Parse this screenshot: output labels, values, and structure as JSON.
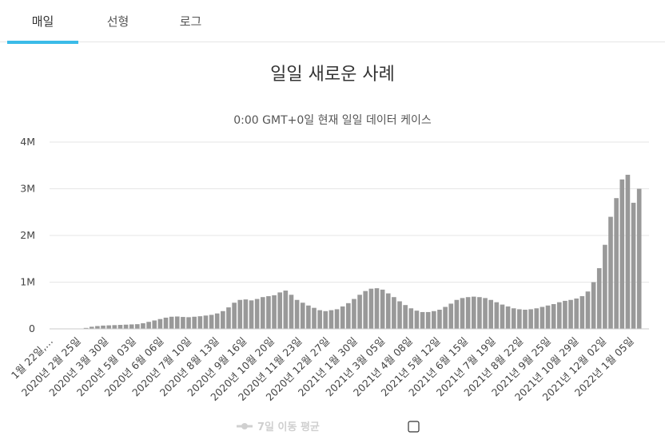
{
  "tabs": [
    {
      "label": "매일"
    },
    {
      "label": "선형"
    },
    {
      "label": "로그"
    }
  ],
  "legend": {
    "label": "7일 이동 평균"
  },
  "colors": {
    "bar": "#999999",
    "accent": "#3bbbe8",
    "grid": "#e6e6e6"
  },
  "chart_data": {
    "type": "bar",
    "title": "일일 새로운 사례",
    "subtitle": "0:00 GMT+0일 현재 일일 데이터 케이스",
    "xlabel": "",
    "ylabel": "",
    "ylim": [
      0,
      4000000
    ],
    "yticks": [
      {
        "value": 0,
        "label": "0"
      },
      {
        "value": 1000000,
        "label": "1M"
      },
      {
        "value": 2000000,
        "label": "2M"
      },
      {
        "value": 3000000,
        "label": "3M"
      },
      {
        "value": 4000000,
        "label": "4M"
      }
    ],
    "xtick_labels": [
      "1월 22일,…",
      "2020년 2월 25일",
      "2020년 3월 30일",
      "2020년 5월 03일",
      "2020년 6월 06일",
      "2020년 7월 10일",
      "2020년 8월 13일",
      "2020년 9월 16일",
      "2020년 10월 20일",
      "2020년 11월 23일",
      "2020년 12월 27일",
      "2021년 1월 30일",
      "2021년 3월 05일",
      "2021년 4월 08일",
      "2021년 5월 12일",
      "2021년 6월 15일",
      "2021년 7월 19일",
      "2021년 8월 22일",
      "2021년 9월 25일",
      "2021년 10월 29일",
      "2021년 12월 02일",
      "2022년 1월 05일"
    ],
    "series": [
      {
        "values": [
          0,
          0,
          0,
          0,
          0,
          5000,
          20000,
          45000,
          60000,
          70000,
          75000,
          80000,
          85000,
          90000,
          95000,
          100000,
          120000,
          150000,
          180000,
          210000,
          240000,
          260000,
          265000,
          255000,
          250000,
          260000,
          270000,
          285000,
          300000,
          330000,
          380000,
          460000,
          560000,
          620000,
          630000,
          610000,
          640000,
          680000,
          700000,
          720000,
          780000,
          820000,
          730000,
          620000,
          560000,
          500000,
          450000,
          400000,
          380000,
          400000,
          420000,
          480000,
          550000,
          640000,
          730000,
          810000,
          860000,
          870000,
          840000,
          760000,
          680000,
          590000,
          510000,
          440000,
          390000,
          360000,
          360000,
          380000,
          410000,
          470000,
          540000,
          620000,
          660000,
          680000,
          690000,
          680000,
          660000,
          620000,
          570000,
          520000,
          480000,
          440000,
          420000,
          410000,
          420000,
          440000,
          470000,
          500000,
          530000,
          570000,
          600000,
          620000,
          650000,
          700000,
          800000,
          1000000,
          1300000,
          1800000,
          2400000,
          2800000,
          3200000,
          3300000,
          2700000,
          3000000
        ]
      }
    ]
  }
}
